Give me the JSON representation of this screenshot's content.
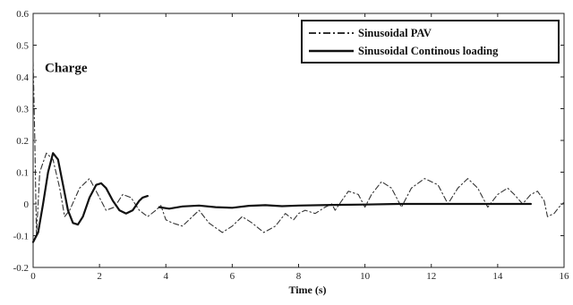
{
  "chart_data": {
    "type": "line",
    "title": "",
    "xlabel": "Time (s)",
    "ylabel": "",
    "xlim": [
      0,
      16
    ],
    "ylim": [
      -0.2,
      0.6
    ],
    "xticks": [
      0,
      2,
      4,
      6,
      8,
      10,
      12,
      14,
      16
    ],
    "yticks": [
      -0.2,
      -0.1,
      0,
      0.1,
      0.2,
      0.3,
      0.4,
      0.5,
      0.6
    ],
    "grid": false,
    "legend_position": "top-right",
    "annotation": "Charge",
    "series": [
      {
        "name": "Sinusoidal PAV",
        "style": "dash-dot",
        "color": "#333333",
        "points": [
          [
            0.0,
            0.45
          ],
          [
            0.05,
            0.2
          ],
          [
            0.1,
            -0.1
          ],
          [
            0.2,
            0.1
          ],
          [
            0.4,
            0.16
          ],
          [
            0.6,
            0.14
          ],
          [
            0.8,
            0.05
          ],
          [
            0.95,
            -0.04
          ],
          [
            1.1,
            -0.02
          ],
          [
            1.4,
            0.05
          ],
          [
            1.7,
            0.08
          ],
          [
            1.95,
            0.03
          ],
          [
            2.2,
            -0.02
          ],
          [
            2.45,
            -0.01
          ],
          [
            2.7,
            0.03
          ],
          [
            2.95,
            0.02
          ],
          [
            3.2,
            -0.02
          ],
          [
            3.45,
            -0.04
          ],
          [
            3.7,
            -0.02
          ],
          [
            3.85,
            -0.005
          ],
          [
            4.0,
            -0.05
          ],
          [
            4.2,
            -0.06
          ],
          [
            4.5,
            -0.07
          ],
          [
            4.8,
            -0.04
          ],
          [
            5.0,
            -0.02
          ],
          [
            5.3,
            -0.06
          ],
          [
            5.7,
            -0.09
          ],
          [
            6.0,
            -0.07
          ],
          [
            6.3,
            -0.04
          ],
          [
            6.6,
            -0.06
          ],
          [
            6.95,
            -0.09
          ],
          [
            7.3,
            -0.07
          ],
          [
            7.6,
            -0.03
          ],
          [
            7.85,
            -0.05
          ],
          [
            8.0,
            -0.03
          ],
          [
            8.2,
            -0.02
          ],
          [
            8.5,
            -0.03
          ],
          [
            8.8,
            -0.01
          ],
          [
            9.0,
            0.0
          ],
          [
            9.1,
            -0.02
          ],
          [
            9.3,
            0.01
          ],
          [
            9.5,
            0.04
          ],
          [
            9.8,
            0.03
          ],
          [
            10.0,
            -0.01
          ],
          [
            10.2,
            0.03
          ],
          [
            10.5,
            0.07
          ],
          [
            10.8,
            0.05
          ],
          [
            11.1,
            -0.01
          ],
          [
            11.4,
            0.05
          ],
          [
            11.8,
            0.08
          ],
          [
            12.2,
            0.06
          ],
          [
            12.5,
            0.0
          ],
          [
            12.8,
            0.05
          ],
          [
            13.1,
            0.08
          ],
          [
            13.4,
            0.05
          ],
          [
            13.7,
            -0.01
          ],
          [
            14.0,
            0.03
          ],
          [
            14.3,
            0.05
          ],
          [
            14.5,
            0.03
          ],
          [
            14.75,
            0.0
          ],
          [
            15.0,
            0.03
          ],
          [
            15.2,
            0.04
          ],
          [
            15.4,
            0.01
          ],
          [
            15.5,
            -0.04
          ],
          [
            15.7,
            -0.03
          ],
          [
            15.85,
            -0.01
          ],
          [
            16.0,
            0.005
          ]
        ]
      },
      {
        "name": "Sinusoidal Continous loading",
        "style": "solid",
        "color": "#111111",
        "points": [
          [
            0.0,
            -0.12
          ],
          [
            0.15,
            -0.09
          ],
          [
            0.3,
            0.0
          ],
          [
            0.45,
            0.1
          ],
          [
            0.6,
            0.16
          ],
          [
            0.75,
            0.14
          ],
          [
            0.9,
            0.06
          ],
          [
            1.05,
            -0.02
          ],
          [
            1.2,
            -0.06
          ],
          [
            1.35,
            -0.065
          ],
          [
            1.5,
            -0.04
          ],
          [
            1.7,
            0.02
          ],
          [
            1.9,
            0.06
          ],
          [
            2.05,
            0.065
          ],
          [
            2.2,
            0.05
          ],
          [
            2.4,
            0.01
          ],
          [
            2.6,
            -0.02
          ],
          [
            2.8,
            -0.03
          ],
          [
            3.0,
            -0.02
          ],
          [
            3.2,
            0.01
          ],
          [
            3.3,
            0.02
          ],
          [
            3.45,
            0.025
          ],
          [
            3.6,
            null
          ],
          [
            3.8,
            -0.01
          ],
          [
            4.1,
            -0.015
          ],
          [
            4.5,
            -0.008
          ],
          [
            5.0,
            -0.005
          ],
          [
            5.5,
            -0.01
          ],
          [
            6.0,
            -0.012
          ],
          [
            6.5,
            -0.006
          ],
          [
            7.0,
            -0.004
          ],
          [
            7.5,
            -0.007
          ],
          [
            8.0,
            -0.005
          ],
          [
            9.0,
            -0.003
          ],
          [
            10.0,
            -0.002
          ],
          [
            11.0,
            0.0
          ],
          [
            12.0,
            0.0
          ],
          [
            13.0,
            0.0
          ],
          [
            14.0,
            0.0
          ],
          [
            15.0,
            0.0
          ]
        ]
      }
    ]
  }
}
